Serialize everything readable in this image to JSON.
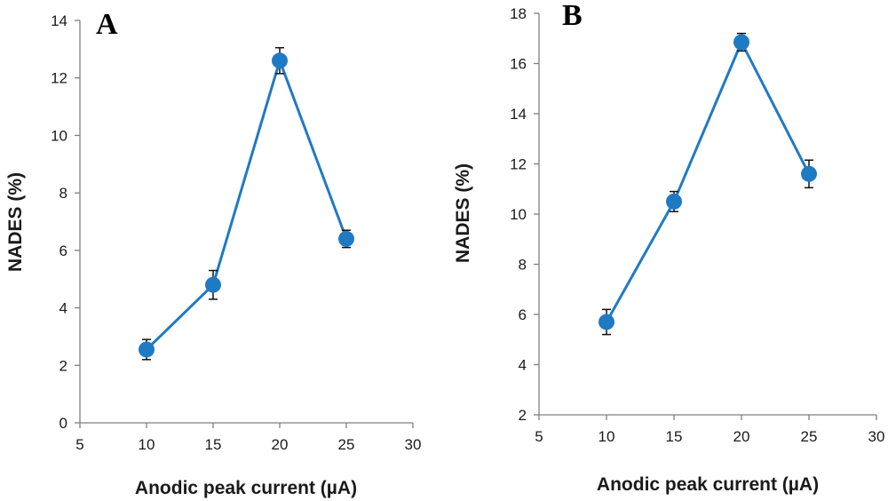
{
  "chart_data": [
    {
      "type": "line",
      "panel_label": "A",
      "xlabel": "Anodic peak current (µA)",
      "ylabel": "NADES (%)",
      "xlim": [
        5,
        30
      ],
      "ylim": [
        0,
        14
      ],
      "xticks": [
        5,
        10,
        15,
        20,
        25,
        30
      ],
      "yticks": [
        0,
        2,
        4,
        6,
        8,
        10,
        12,
        14
      ],
      "grid": false,
      "color": "#1f7ac4",
      "x": [
        10,
        15,
        20,
        25
      ],
      "series": [
        {
          "values": [
            2.55,
            4.8,
            12.6,
            6.4
          ],
          "errors": [
            0.35,
            0.5,
            0.45,
            0.3
          ]
        }
      ]
    },
    {
      "type": "line",
      "panel_label": "B",
      "xlabel": "Anodic peak current (µA)",
      "ylabel": "NADES (%)",
      "xlim": [
        5,
        30
      ],
      "ylim": [
        2,
        18
      ],
      "xticks": [
        5,
        10,
        15,
        20,
        25,
        30
      ],
      "yticks": [
        2,
        4,
        6,
        8,
        10,
        12,
        14,
        16,
        18
      ],
      "grid": false,
      "color": "#1f7ac4",
      "x": [
        10,
        15,
        20,
        25
      ],
      "series": [
        {
          "values": [
            5.7,
            10.5,
            16.85,
            11.6
          ],
          "errors": [
            0.5,
            0.4,
            0.35,
            0.55
          ]
        }
      ]
    }
  ]
}
